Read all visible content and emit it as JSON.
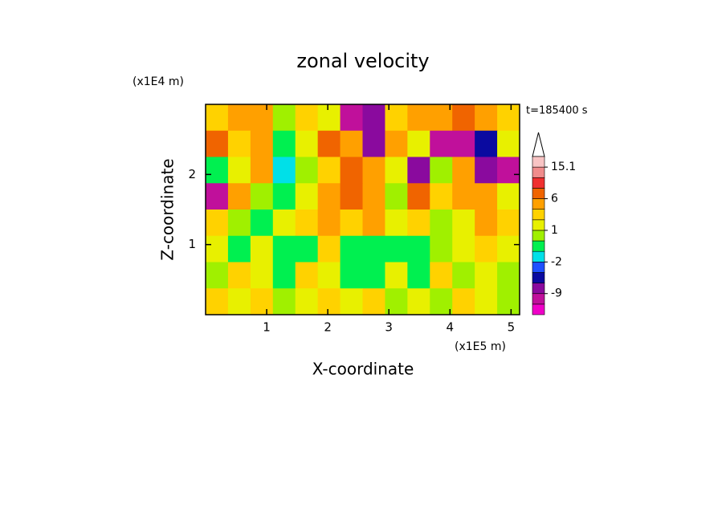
{
  "chart_data": {
    "type": "contour",
    "title": "zonal velocity",
    "x_label": "X-coordinate",
    "y_label": "Z-coordinate",
    "x_scale_label": "(x1E5 m)",
    "y_scale_label": "(x1E4 m)",
    "annotation": "t=185400 s",
    "xlim": [
      0,
      5.14
    ],
    "ylim": [
      0,
      3.0
    ],
    "xticks": [
      1,
      2,
      3,
      4,
      5
    ],
    "yticks": [
      1,
      2
    ],
    "z": [
      [
        2,
        4,
        3,
        0,
        2,
        1,
        -10,
        -8,
        2,
        4,
        3,
        6,
        4,
        2
      ],
      [
        6,
        2,
        5,
        -1,
        1,
        6,
        4,
        -9,
        3,
        1,
        -10,
        -12,
        -6,
        1
      ],
      [
        -1,
        1,
        4,
        -2,
        0,
        2,
        6,
        3,
        1,
        -8,
        0,
        3,
        -9,
        -10
      ],
      [
        -10,
        3,
        0,
        -1,
        1,
        4,
        7,
        3,
        0,
        7,
        2,
        4,
        3,
        1
      ],
      [
        2,
        0,
        -1,
        1,
        2,
        3,
        2,
        4,
        1,
        2,
        0,
        1,
        4,
        2
      ],
      [
        1,
        -1,
        1,
        -1,
        -1,
        2,
        -1,
        -1,
        -1,
        -1,
        0,
        1,
        2,
        1
      ],
      [
        0,
        2,
        1,
        -1,
        2,
        1,
        -1,
        -1,
        1,
        -1,
        2,
        0,
        1,
        0
      ],
      [
        2,
        1,
        2,
        0,
        1,
        2,
        1,
        2,
        0,
        1,
        0,
        2,
        1,
        0
      ]
    ],
    "colorbar": {
      "levels": [
        -15,
        -12,
        -9,
        -6,
        -3,
        -2,
        -1,
        0,
        1,
        2,
        3,
        6,
        9,
        12,
        15.1
      ],
      "labeled": [
        15.1,
        6,
        1,
        -2,
        -9
      ],
      "colors": [
        "#f000c8",
        "#c0109b",
        "#8a0a9e",
        "#0a0aa0",
        "#1e50ff",
        "#00e0e8",
        "#00f050",
        "#a0f000",
        "#e8f000",
        "#ffd200",
        "#ffa000",
        "#f06400",
        "#f03030",
        "#f08c8c",
        "#f8c4c4"
      ]
    }
  }
}
